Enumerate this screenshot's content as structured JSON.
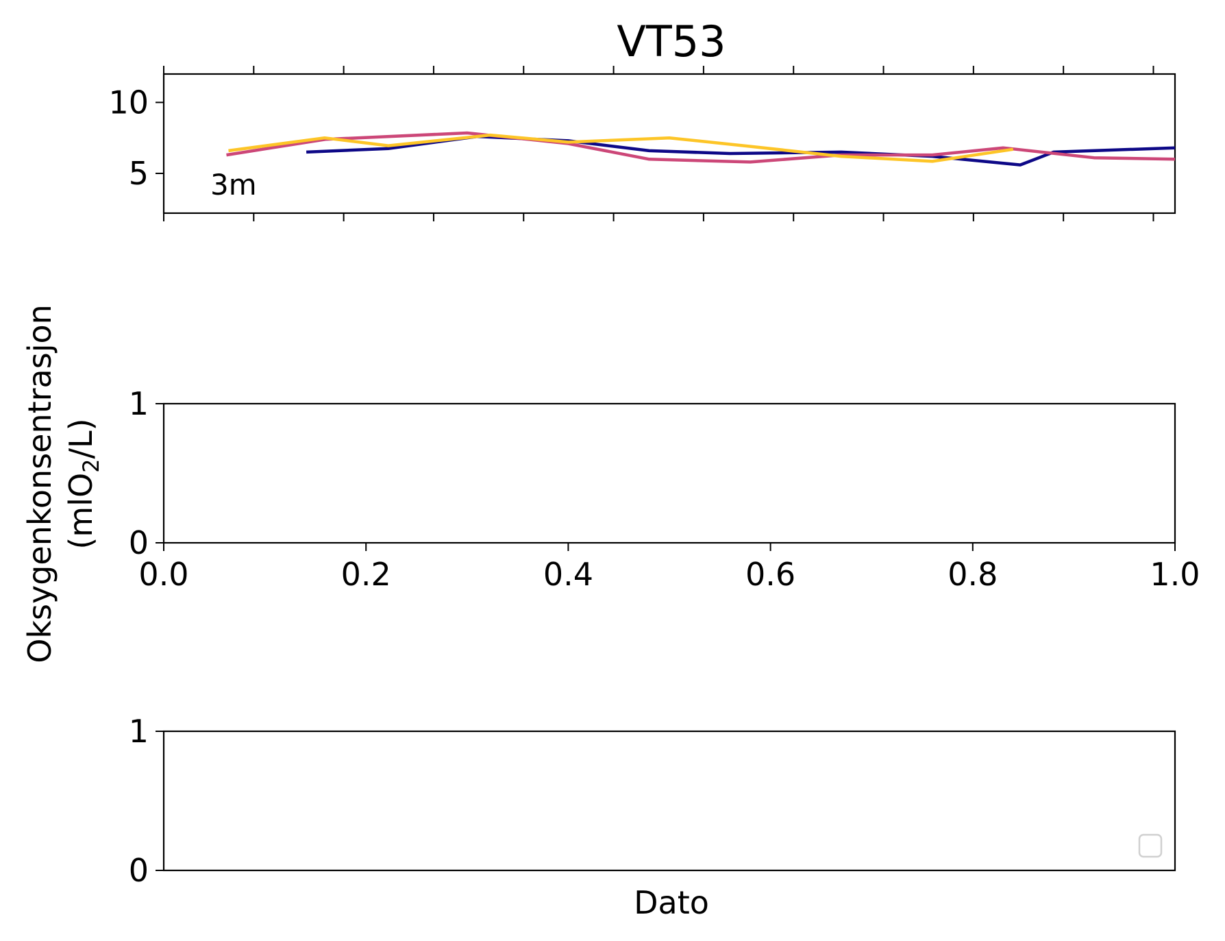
{
  "chart_data": {
    "type": "line",
    "title": "VT53",
    "ylabel_line1": "Oksygenkonsentrasjon",
    "ylabel_line2_prefix": "(mlO",
    "ylabel_line2_sub": "2",
    "ylabel_line2_suffix": "/L)",
    "xlabel": "Dato",
    "panels": [
      {
        "annotation": "3m",
        "ylim": [
          2.2,
          12
        ],
        "yticks": [
          "5",
          "10"
        ],
        "ytick_values": [
          5,
          10
        ],
        "xlim": [
          0,
          1
        ],
        "x_tick_count": 12,
        "series": [
          {
            "color": "#0d0887",
            "x": [
              0.141,
              0.222,
              0.31,
              0.4,
              0.48,
              0.56,
              0.67,
              0.76,
              0.847,
              0.88,
              1.0
            ],
            "y": [
              6.5,
              6.75,
              7.6,
              7.3,
              6.6,
              6.4,
              6.5,
              6.2,
              5.6,
              6.5,
              6.8
            ]
          },
          {
            "color": "#cc4778",
            "x": [
              0.062,
              0.16,
              0.3,
              0.4,
              0.48,
              0.58,
              0.67,
              0.76,
              0.83,
              0.92,
              1.0
            ],
            "y": [
              6.3,
              7.4,
              7.85,
              7.1,
              6.0,
              5.8,
              6.3,
              6.3,
              6.8,
              6.1,
              6.0
            ]
          },
          {
            "color": "#fdc527",
            "x": [
              0.064,
              0.159,
              0.222,
              0.323,
              0.4,
              0.5,
              0.58,
              0.67,
              0.76,
              0.84
            ],
            "y": [
              6.6,
              7.5,
              6.95,
              7.7,
              7.2,
              7.5,
              6.9,
              6.2,
              5.85,
              6.7
            ]
          }
        ]
      },
      {
        "ylim": [
          0,
          1
        ],
        "yticks": [
          "0",
          "1"
        ],
        "ytick_values": [
          0,
          1
        ],
        "xlim": [
          0,
          1
        ],
        "xticks": [
          "0.0",
          "0.2",
          "0.4",
          "0.6",
          "0.8",
          "1.0"
        ],
        "xtick_values": [
          0,
          0.2,
          0.4,
          0.6,
          0.8,
          1.0
        ],
        "series": []
      },
      {
        "ylim": [
          0,
          1
        ],
        "yticks": [
          "0",
          "1"
        ],
        "ytick_values": [
          0,
          1
        ],
        "legend": "lower right",
        "series": []
      }
    ]
  }
}
